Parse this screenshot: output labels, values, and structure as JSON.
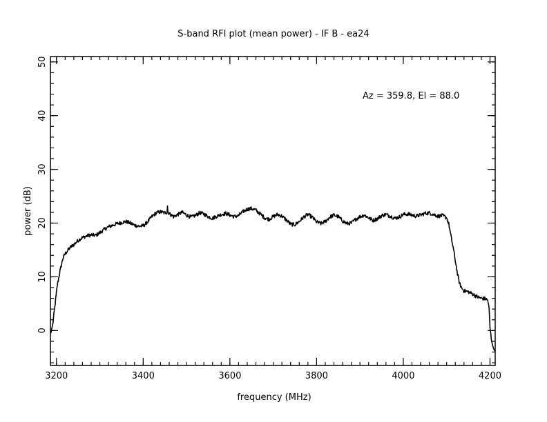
{
  "chart_data": {
    "type": "line",
    "title": "S-band RFI plot (mean power) - IF B - ea24",
    "xlabel": "frequency (MHz)",
    "ylabel": "power (dB)",
    "annotation": "Az = 359.8, El = 88.0",
    "xlim": [
      3186,
      4212
    ],
    "ylim": [
      -6.5,
      51
    ],
    "x_ticks": [
      3200,
      3400,
      3600,
      3800,
      4000,
      4200
    ],
    "x_tick_labels": [
      "3200",
      "3400",
      "3600",
      "3800",
      "4000",
      "4200"
    ],
    "y_ticks": [
      0,
      10,
      20,
      30,
      40,
      50
    ],
    "y_tick_labels": [
      "0",
      "10",
      "20",
      "30",
      "40",
      "50"
    ],
    "x_minor_step": 20,
    "y_minor_step": 2,
    "grid": false,
    "series": [
      {
        "color": "#000000",
        "x": [
          3187,
          3192,
          3197,
          3202,
          3208,
          3215,
          3220,
          3225,
          3232,
          3240,
          3250,
          3260,
          3270,
          3280,
          3290,
          3300,
          3310,
          3320,
          3330,
          3340,
          3350,
          3360,
          3370,
          3380,
          3390,
          3400,
          3410,
          3420,
          3430,
          3440,
          3450,
          3455,
          3456,
          3457,
          3460,
          3470,
          3480,
          3490,
          3500,
          3510,
          3520,
          3530,
          3540,
          3550,
          3560,
          3570,
          3580,
          3590,
          3600,
          3610,
          3620,
          3630,
          3640,
          3650,
          3660,
          3670,
          3680,
          3690,
          3700,
          3710,
          3720,
          3730,
          3740,
          3750,
          3760,
          3770,
          3780,
          3790,
          3800,
          3810,
          3820,
          3830,
          3840,
          3850,
          3860,
          3870,
          3880,
          3890,
          3900,
          3910,
          3920,
          3930,
          3940,
          3950,
          3960,
          3970,
          3980,
          3990,
          4000,
          4010,
          4020,
          4030,
          4040,
          4050,
          4060,
          4070,
          4080,
          4090,
          4100,
          4105,
          4110,
          4115,
          4120,
          4125,
          4130,
          4135,
          4140,
          4150,
          4160,
          4170,
          4180,
          4190,
          4195,
          4198,
          4200,
          4203,
          4206,
          4209,
          4211
        ],
        "values": [
          -0.5,
          1.5,
          5.0,
          8.5,
          11.0,
          13.5,
          14.3,
          14.8,
          15.5,
          16.0,
          16.8,
          17.3,
          17.6,
          17.8,
          17.7,
          18.2,
          18.8,
          19.3,
          19.6,
          19.9,
          20.1,
          20.3,
          20.0,
          19.6,
          19.4,
          19.5,
          20.2,
          21.2,
          21.9,
          22.1,
          21.9,
          22.0,
          23.3,
          22.1,
          21.8,
          21.2,
          21.6,
          22.0,
          21.5,
          21.1,
          21.4,
          21.9,
          21.7,
          21.2,
          20.9,
          21.3,
          21.6,
          21.8,
          21.5,
          21.2,
          21.4,
          22.1,
          22.6,
          22.7,
          22.4,
          21.7,
          21.0,
          20.7,
          21.2,
          21.6,
          21.3,
          20.6,
          19.8,
          19.7,
          20.3,
          21.1,
          21.6,
          21.1,
          20.2,
          19.9,
          20.3,
          21.1,
          21.5,
          21.2,
          20.4,
          19.9,
          20.0,
          20.7,
          21.2,
          21.5,
          21.0,
          20.5,
          20.8,
          21.4,
          21.6,
          21.3,
          20.9,
          21.1,
          21.6,
          21.7,
          21.5,
          21.3,
          21.5,
          21.8,
          21.9,
          21.6,
          21.3,
          21.4,
          21.0,
          19.8,
          17.5,
          15.5,
          13.0,
          10.5,
          8.7,
          7.9,
          7.4,
          7.2,
          6.8,
          6.3,
          6.0,
          5.9,
          5.6,
          4.0,
          0.5,
          -1.5,
          -2.8,
          -3.5,
          -3.8
        ]
      }
    ]
  }
}
